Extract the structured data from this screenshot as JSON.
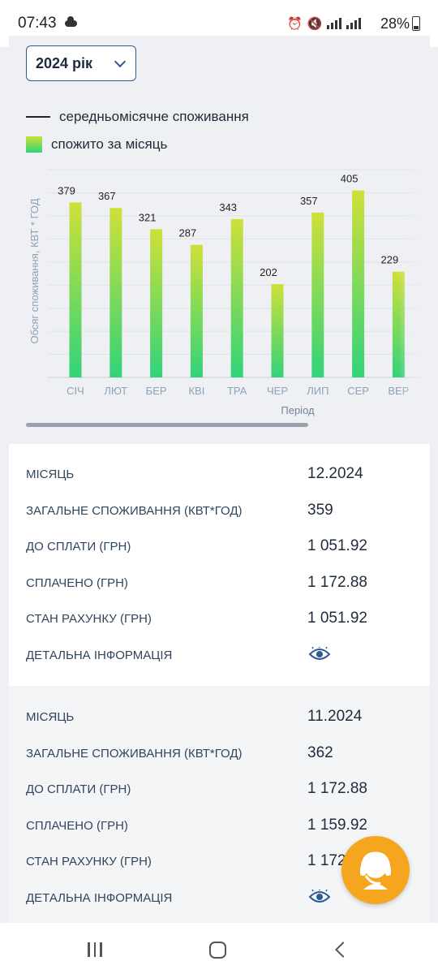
{
  "status_bar": {
    "time": "07:43",
    "battery": "28%"
  },
  "year_select": {
    "label": "2024 рік"
  },
  "legend": {
    "line_label": "середньомісячне споживання",
    "bar_label": "спожито за місяць"
  },
  "chart_data": {
    "type": "bar",
    "categories": [
      "СІЧ",
      "ЛЮТ",
      "БЕР",
      "КВІ",
      "ТРА",
      "ЧЕР",
      "ЛИП",
      "СЕР",
      "ВЕР"
    ],
    "values": [
      379,
      367,
      321,
      287,
      343,
      202,
      357,
      405,
      229
    ],
    "ylabel": "Обсяг споживання, КВТ * ГОД",
    "xlabel": "Період",
    "ylim": [
      0,
      450
    ],
    "grid": true,
    "colors": {
      "bar_top": "#cfe038",
      "bar_bottom": "#32d37a"
    }
  },
  "records": [
    {
      "month_label": "МІСЯЦЬ",
      "month": "12.2024",
      "consumption_label": "ЗАГАЛЬНЕ СПОЖИВАННЯ (КВТ*ГОД)",
      "consumption": "359",
      "to_pay_label": "ДО СПЛАТИ (ГРН)",
      "to_pay": "1 051.92",
      "paid_label": "СПЛАЧЕНО (ГРН)",
      "paid": "1 172.88",
      "balance_label": "СТАН РАХУНКУ (ГРН)",
      "balance": "1 051.92",
      "details_label": "ДЕТАЛЬНА ІНФОРМАЦІЯ"
    },
    {
      "month_label": "МІСЯЦЬ",
      "month": "11.2024",
      "consumption_label": "ЗАГАЛЬНЕ СПОЖИВАННЯ (КВТ*ГОД)",
      "consumption": "362",
      "to_pay_label": "ДО СПЛАТИ (ГРН)",
      "to_pay": "1 172.88",
      "paid_label": "СПЛАЧЕНО (ГРН)",
      "paid": "1 159.92",
      "balance_label": "СТАН РАХУНКУ (ГРН)",
      "balance": "1 172.88",
      "details_label": "ДЕТАЛЬНА ІНФОРМАЦІЯ"
    }
  ],
  "icons": {
    "details": "eye-icon",
    "support": "support-agent-icon",
    "chevron": "chevron-down-icon"
  },
  "colors": {
    "accent": "#2f5b93",
    "fab": "#f6a61e"
  }
}
